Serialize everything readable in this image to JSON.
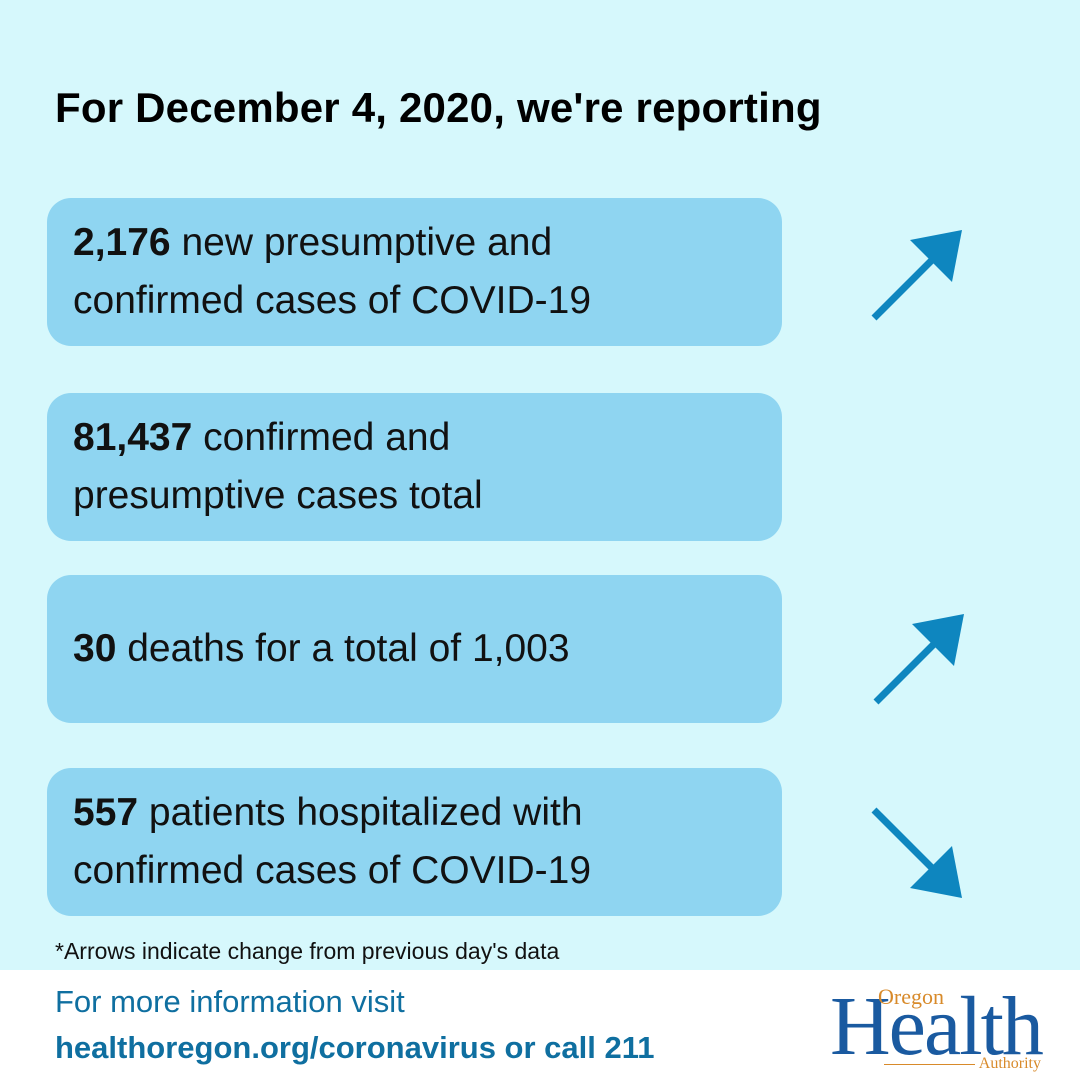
{
  "title": "For December 4, 2020, we're reporting",
  "cards": [
    {
      "bold": "2,176",
      "text1": " new presumptive and",
      "text2": "confirmed cases of COVID-19",
      "arrow": "up-right-arrow-icon"
    },
    {
      "bold": "81,437",
      "text1": " confirmed and",
      "text2": "presumptive cases total",
      "arrow": ""
    },
    {
      "bold": "30",
      "text1": " deaths for a total of 1,003",
      "text2": "",
      "arrow": "up-right-arrow-icon"
    },
    {
      "bold": "557",
      "text1": " patients hospitalized with",
      "text2": "confirmed cases of COVID-19",
      "arrow": "down-right-arrow-icon"
    }
  ],
  "note": "*Arrows indicate change from previous day's data",
  "footer": {
    "line1": "For more information visit",
    "line2": "healthoregon.org/coronavirus or call 211"
  },
  "logo": {
    "oregon": "Oregon",
    "health": "Health",
    "authority": "Authority"
  },
  "colors": {
    "background": "#d6f8fc",
    "card": "#8fd5f1",
    "arrow": "#0e86bf",
    "footer_text": "#0f6fa0",
    "logo_blue": "#1a5aa0",
    "logo_orange": "#d88a2a"
  }
}
